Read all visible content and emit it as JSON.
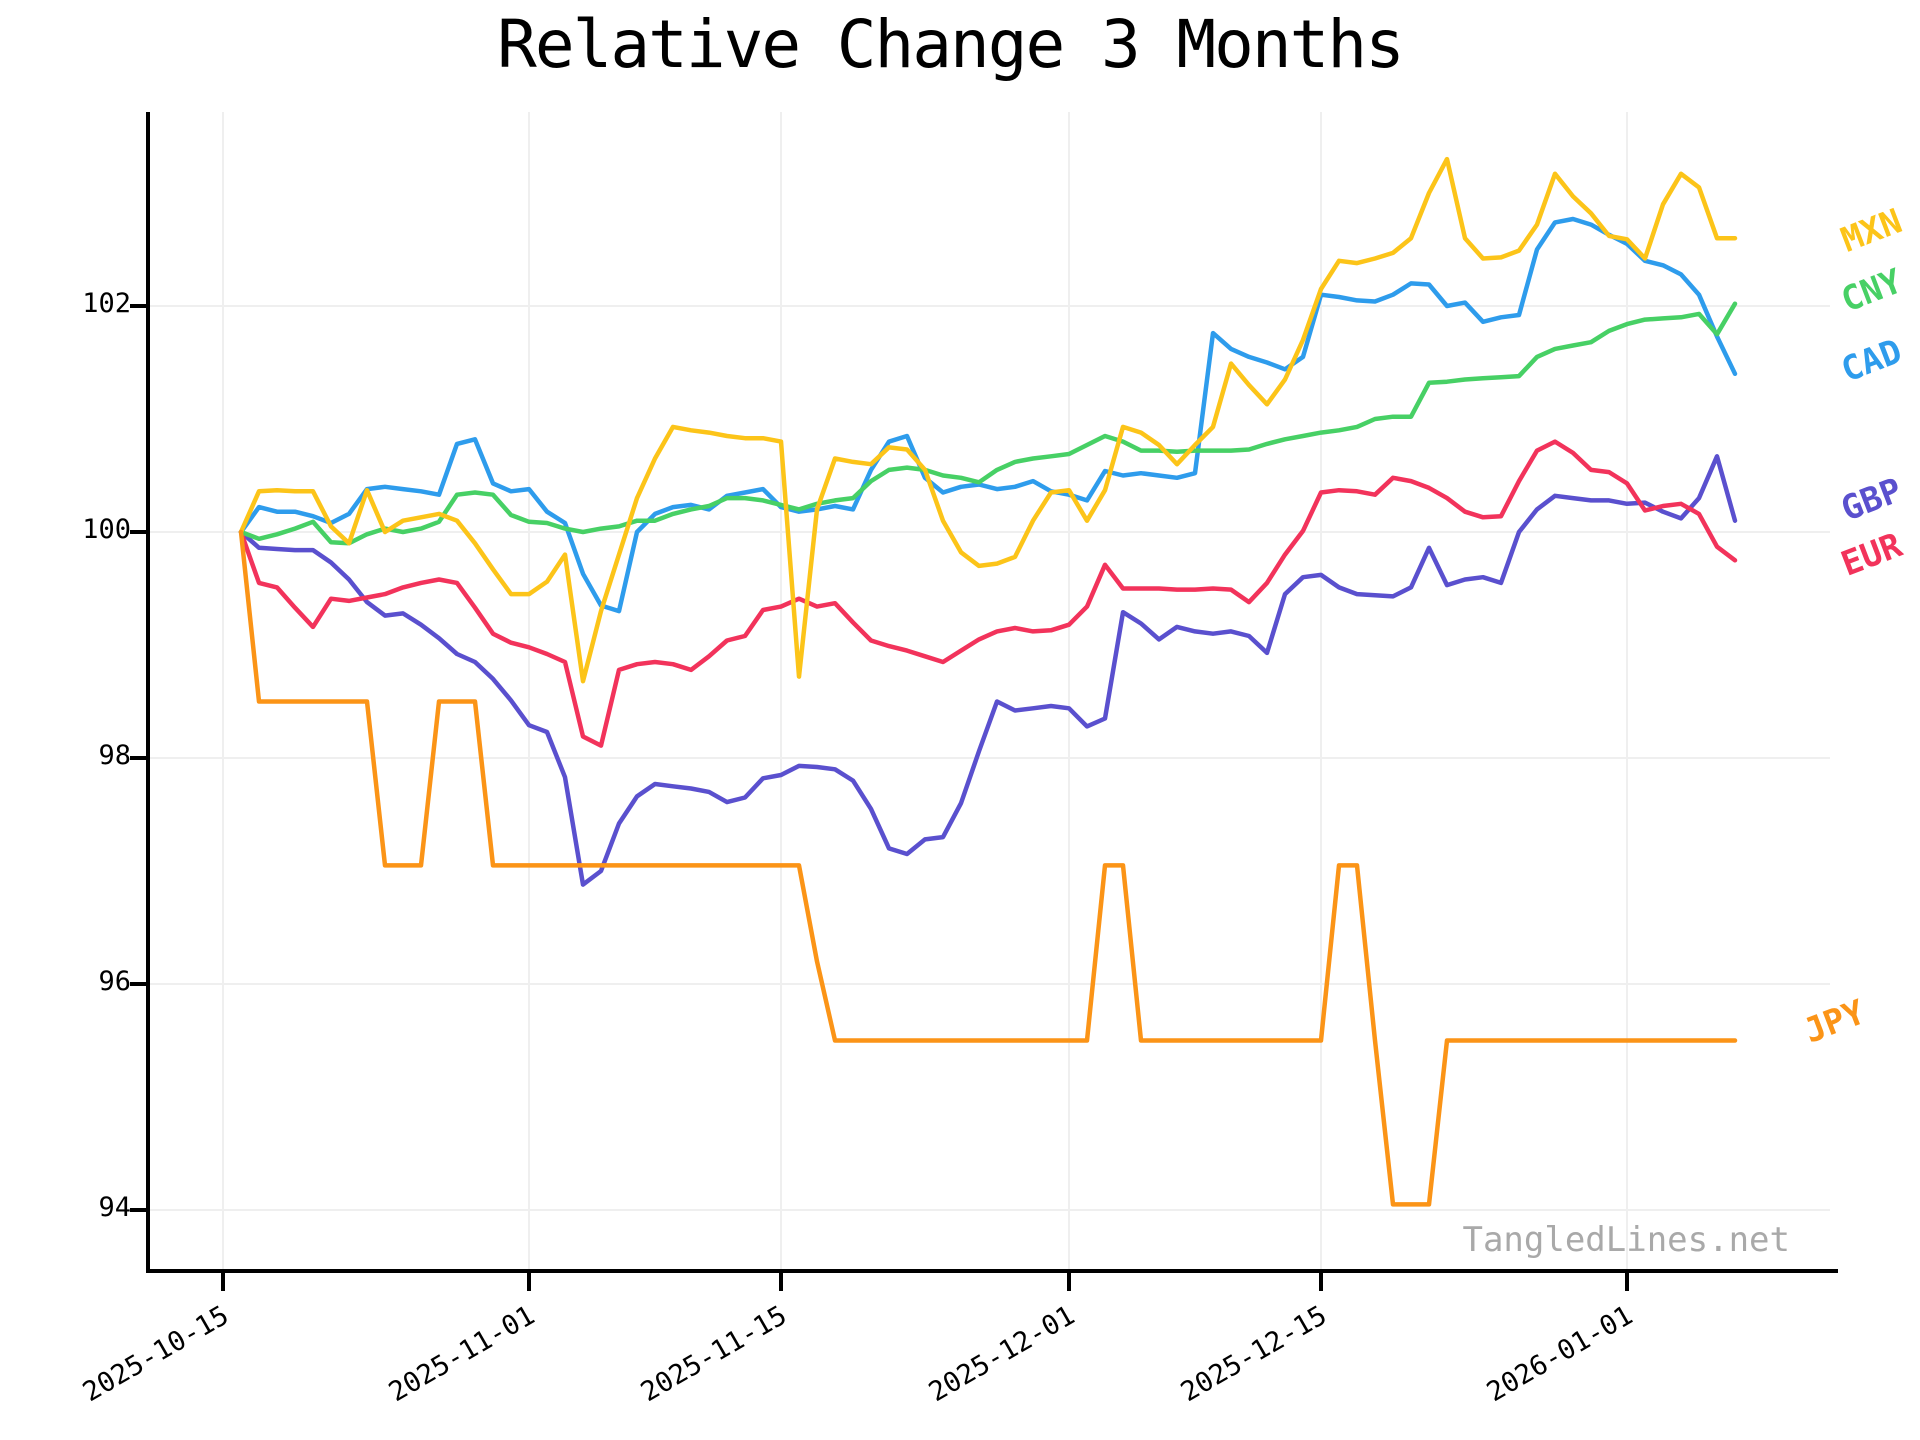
{
  "title": "Relative Change 3 Months",
  "watermark": "TangledLines.net",
  "chart_data": {
    "type": "line",
    "title": "Relative Change 3 Months",
    "xlabel": "",
    "ylabel": "",
    "grid": true,
    "legend_position": "right-margin-rotated",
    "x_start_date": "2025-10-16",
    "x_end_date": "2026-01-07",
    "x_tick_labels": [
      "2025-10-15",
      "2025-11-01",
      "2025-11-15",
      "2025-12-01",
      "2025-12-15",
      "2026-01-01"
    ],
    "x_tick_days_from_start": [
      -1,
      16,
      30,
      46,
      60,
      77
    ],
    "y_tick_labels": [
      "102",
      "100",
      "98",
      "96",
      "94"
    ],
    "y_ticks": [
      102,
      100,
      98,
      96,
      94
    ],
    "ylim": [
      93.45,
      103.7
    ],
    "series": [
      {
        "name": "GBP",
        "color": "#5a50ce",
        "values": [
          100.0,
          99.86,
          99.85,
          99.84,
          99.84,
          99.73,
          99.58,
          99.38,
          99.26,
          99.28,
          99.18,
          99.06,
          98.92,
          98.85,
          98.7,
          98.51,
          98.29,
          98.23,
          97.83,
          96.88,
          97.0,
          97.42,
          97.66,
          97.77,
          97.75,
          97.73,
          97.7,
          97.61,
          97.65,
          97.82,
          97.85,
          97.93,
          97.92,
          97.9,
          97.8,
          97.55,
          97.2,
          97.15,
          97.28,
          97.3,
          97.6,
          98.06,
          98.5,
          98.42,
          98.44,
          98.46,
          98.44,
          98.28,
          98.35,
          99.29,
          99.19,
          99.05,
          99.16,
          99.12,
          99.1,
          99.12,
          99.08,
          98.93,
          99.45,
          99.6,
          99.62,
          99.51,
          99.45,
          99.44,
          99.43,
          99.51,
          99.86,
          99.53,
          99.58,
          99.6,
          99.55,
          100.0,
          100.2,
          100.32,
          100.3,
          100.28,
          100.28,
          100.25,
          100.26,
          100.18,
          100.12,
          100.3,
          100.67,
          100.1
        ]
      },
      {
        "name": "EUR",
        "color": "#f2335b",
        "values": [
          100.0,
          99.55,
          99.51,
          99.33,
          99.16,
          99.41,
          99.39,
          99.42,
          99.45,
          99.51,
          99.55,
          99.58,
          99.55,
          99.33,
          99.1,
          99.02,
          98.98,
          98.92,
          98.85,
          98.19,
          98.11,
          98.78,
          98.83,
          98.85,
          98.83,
          98.78,
          98.9,
          99.04,
          99.08,
          99.31,
          99.34,
          99.41,
          99.34,
          99.37,
          99.2,
          99.04,
          98.99,
          98.95,
          98.9,
          98.85,
          98.95,
          99.05,
          99.12,
          99.15,
          99.12,
          99.13,
          99.18,
          99.34,
          99.71,
          99.5,
          99.5,
          99.5,
          99.49,
          99.49,
          99.5,
          99.49,
          99.38,
          99.55,
          99.8,
          100.01,
          100.35,
          100.37,
          100.36,
          100.33,
          100.48,
          100.45,
          100.39,
          100.3,
          100.18,
          100.13,
          100.14,
          100.45,
          100.72,
          100.8,
          100.7,
          100.55,
          100.53,
          100.43,
          100.19,
          100.23,
          100.25,
          100.16,
          99.87,
          99.75
        ]
      },
      {
        "name": "CAD",
        "color": "#2e9cec",
        "values": [
          100.0,
          100.22,
          100.18,
          100.18,
          100.14,
          100.08,
          100.16,
          100.38,
          100.4,
          100.38,
          100.36,
          100.33,
          100.78,
          100.82,
          100.43,
          100.36,
          100.38,
          100.18,
          100.08,
          99.63,
          99.35,
          99.3,
          100.0,
          100.16,
          100.22,
          100.24,
          100.2,
          100.32,
          100.35,
          100.38,
          100.22,
          100.18,
          100.2,
          100.23,
          100.2,
          100.55,
          100.8,
          100.85,
          100.48,
          100.35,
          100.4,
          100.42,
          100.38,
          100.4,
          100.45,
          100.36,
          100.33,
          100.28,
          100.54,
          100.5,
          100.52,
          100.5,
          100.48,
          100.52,
          101.76,
          101.62,
          101.55,
          101.5,
          101.44,
          101.55,
          102.1,
          102.08,
          102.05,
          102.04,
          102.1,
          102.2,
          102.19,
          102.0,
          102.03,
          101.86,
          101.9,
          101.92,
          102.5,
          102.74,
          102.77,
          102.72,
          102.63,
          102.55,
          102.4,
          102.36,
          102.28,
          102.1,
          101.73,
          101.4
        ]
      },
      {
        "name": "CNY",
        "color": "#47d065",
        "values": [
          100.0,
          99.94,
          99.98,
          100.03,
          100.09,
          99.91,
          99.9,
          99.98,
          100.03,
          100.0,
          100.03,
          100.09,
          100.33,
          100.35,
          100.33,
          100.15,
          100.09,
          100.08,
          100.03,
          100.0,
          100.03,
          100.05,
          100.1,
          100.1,
          100.16,
          100.2,
          100.23,
          100.3,
          100.3,
          100.28,
          100.24,
          100.2,
          100.25,
          100.28,
          100.3,
          100.45,
          100.55,
          100.57,
          100.55,
          100.5,
          100.48,
          100.44,
          100.55,
          100.62,
          100.65,
          100.67,
          100.69,
          100.77,
          100.85,
          100.8,
          100.72,
          100.72,
          100.71,
          100.72,
          100.72,
          100.72,
          100.73,
          100.78,
          100.82,
          100.85,
          100.88,
          100.9,
          100.93,
          101.0,
          101.02,
          101.02,
          101.32,
          101.33,
          101.35,
          101.36,
          101.37,
          101.38,
          101.55,
          101.62,
          101.65,
          101.68,
          101.78,
          101.84,
          101.88,
          101.89,
          101.9,
          101.93,
          101.75,
          102.02
        ]
      },
      {
        "name": "MXN",
        "color": "#fcc419",
        "values": [
          100.0,
          100.36,
          100.37,
          100.36,
          100.36,
          100.05,
          99.9,
          100.37,
          100.0,
          100.1,
          100.13,
          100.16,
          100.1,
          99.9,
          99.67,
          99.45,
          99.45,
          99.56,
          99.8,
          98.68,
          99.3,
          99.8,
          100.3,
          100.65,
          100.93,
          100.9,
          100.88,
          100.85,
          100.83,
          100.83,
          100.8,
          98.72,
          100.2,
          100.65,
          100.62,
          100.6,
          100.75,
          100.73,
          100.55,
          100.1,
          99.82,
          99.7,
          99.72,
          99.78,
          100.1,
          100.35,
          100.37,
          100.1,
          100.37,
          100.93,
          100.88,
          100.77,
          100.6,
          100.77,
          100.93,
          101.49,
          101.3,
          101.13,
          101.35,
          101.7,
          102.15,
          102.4,
          102.38,
          102.42,
          102.47,
          102.6,
          103.0,
          103.3,
          102.6,
          102.42,
          102.43,
          102.49,
          102.72,
          103.17,
          102.97,
          102.82,
          102.62,
          102.59,
          102.42,
          102.9,
          103.17,
          103.05,
          102.6,
          102.6
        ]
      },
      {
        "name": "JPY",
        "color": "#fb9417",
        "values": [
          100.0,
          98.5,
          98.5,
          98.5,
          98.5,
          98.5,
          98.5,
          98.5,
          97.05,
          97.05,
          97.05,
          98.5,
          98.5,
          98.5,
          97.05,
          97.05,
          97.05,
          97.05,
          97.05,
          97.05,
          97.05,
          97.05,
          97.05,
          97.05,
          97.05,
          97.05,
          97.05,
          97.05,
          97.05,
          97.05,
          97.05,
          97.05,
          96.2,
          95.5,
          95.5,
          95.5,
          95.5,
          95.5,
          95.5,
          95.5,
          95.5,
          95.5,
          95.5,
          95.5,
          95.5,
          95.5,
          95.5,
          95.5,
          97.05,
          97.05,
          95.5,
          95.5,
          95.5,
          95.5,
          95.5,
          95.5,
          95.5,
          95.5,
          95.5,
          95.5,
          95.5,
          97.05,
          97.05,
          95.5,
          94.05,
          94.05,
          94.05,
          95.5,
          95.5,
          95.5,
          95.5,
          95.5,
          95.5,
          95.5,
          95.5,
          95.5,
          95.5,
          95.5,
          95.5,
          95.5,
          95.5,
          95.5,
          95.5,
          95.5
        ]
      }
    ],
    "legend_order": [
      "MXN",
      "CNY",
      "CAD",
      "GBP",
      "EUR",
      "JPY"
    ]
  },
  "colors": {
    "background": "#ffffff",
    "gridline": "#efefef",
    "axis": "#000000",
    "watermark": "#a9a9a9"
  }
}
